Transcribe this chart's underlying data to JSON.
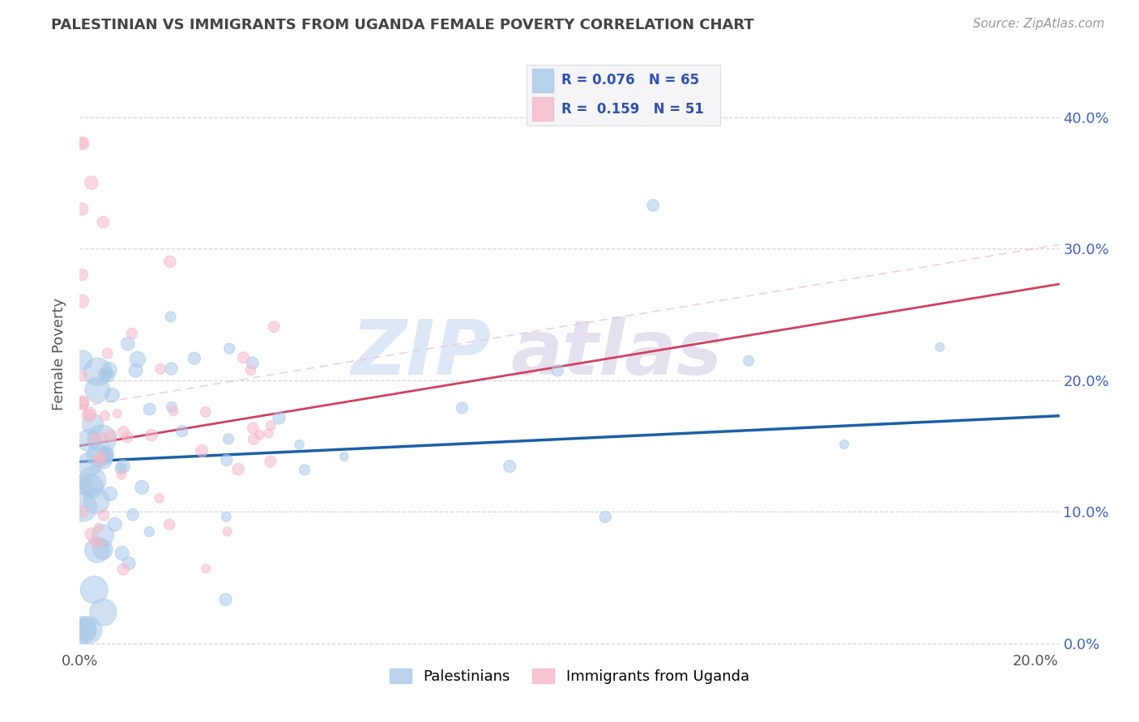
{
  "title": "PALESTINIAN VS IMMIGRANTS FROM UGANDA FEMALE POVERTY CORRELATION CHART",
  "source": "Source: ZipAtlas.com",
  "ylabel": "Female Poverty",
  "series1_name": "Palestinians",
  "series2_name": "Immigrants from Uganda",
  "series1_color": "#a8c8e8",
  "series2_color": "#f4b8c8",
  "series1_R": 0.076,
  "series1_N": 65,
  "series2_R": 0.159,
  "series2_N": 51,
  "xlim": [
    0.0,
    0.205
  ],
  "ylim": [
    -0.005,
    0.445
  ],
  "trend1_color": "#1a5fa8",
  "trend2_color": "#d04060",
  "trend2_dash_color": "#e8a0b0",
  "grid_color": "#cccccc",
  "background_color": "#ffffff",
  "title_color": "#444444",
  "legend_text_color": "#3050b0",
  "watermark_zip_color": "#c8d8f0",
  "watermark_atlas_color": "#d0c8e0",
  "ytick_label_color": "#4060c0",
  "xtick_label_color": "#555555"
}
